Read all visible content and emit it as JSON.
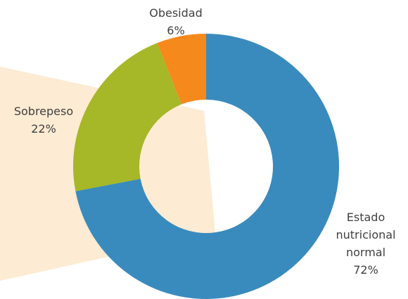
{
  "chart_data": {
    "type": "donut",
    "categories": [
      "Estado nutricional normal",
      "Sobrepeso",
      "Obesidad"
    ],
    "values": [
      72,
      22,
      6
    ],
    "value_labels": [
      "72%",
      "22%",
      "6%"
    ],
    "colors": [
      "#3a8bbd",
      "#a6b727",
      "#f5891c"
    ]
  }
}
